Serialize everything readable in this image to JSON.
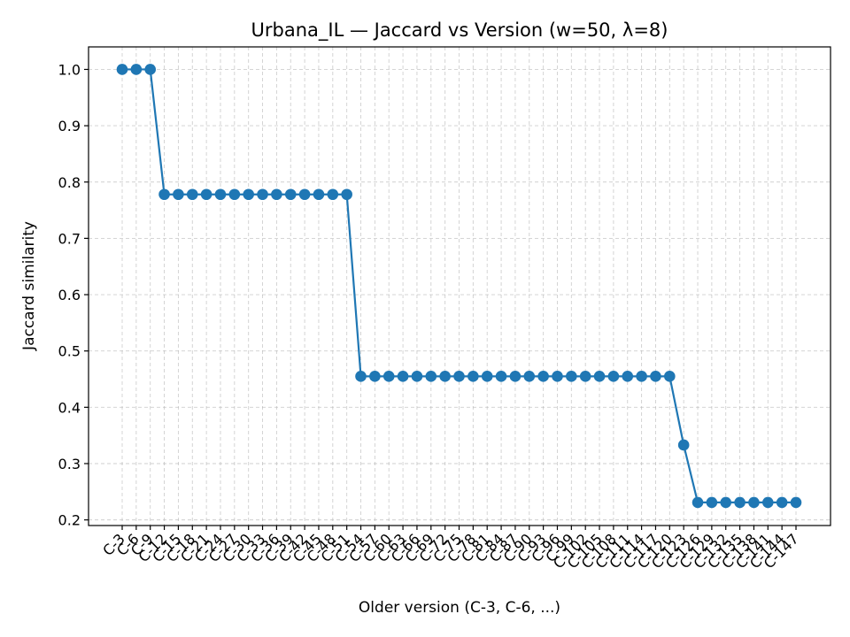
{
  "chart_data": {
    "type": "line",
    "title": "Urbana_IL — Jaccard vs Version (w=50, λ=8)",
    "xlabel": "Older version (C-3, C-6, ...)",
    "ylabel": "Jaccard similarity",
    "ylim": [
      0.19,
      1.04
    ],
    "yticks": [
      0.2,
      0.3,
      0.4,
      0.5,
      0.6,
      0.7,
      0.8,
      0.9,
      1.0
    ],
    "grid": true,
    "color": "#1f77b4",
    "categories": [
      "C-3",
      "C-6",
      "C-9",
      "C-12",
      "C-15",
      "C-18",
      "C-21",
      "C-24",
      "C-27",
      "C-30",
      "C-33",
      "C-36",
      "C-39",
      "C-42",
      "C-45",
      "C-48",
      "C-51",
      "C-54",
      "C-57",
      "C-60",
      "C-63",
      "C-66",
      "C-69",
      "C-72",
      "C-75",
      "C-78",
      "C-81",
      "C-84",
      "C-87",
      "C-90",
      "C-93",
      "C-96",
      "C-99",
      "C-102",
      "C-105",
      "C-108",
      "C-111",
      "C-114",
      "C-117",
      "C-120",
      "C-123",
      "C-126",
      "C-129",
      "C-132",
      "C-135",
      "C-138",
      "C-141",
      "C-144",
      "C-147"
    ],
    "values": [
      1.0,
      1.0,
      1.0,
      0.778,
      0.778,
      0.778,
      0.778,
      0.778,
      0.778,
      0.778,
      0.778,
      0.778,
      0.778,
      0.778,
      0.778,
      0.778,
      0.778,
      0.455,
      0.455,
      0.455,
      0.455,
      0.455,
      0.455,
      0.455,
      0.455,
      0.455,
      0.455,
      0.455,
      0.455,
      0.455,
      0.455,
      0.455,
      0.455,
      0.455,
      0.455,
      0.455,
      0.455,
      0.455,
      0.455,
      0.455,
      0.333,
      0.231,
      0.231,
      0.231,
      0.231,
      0.231,
      0.231,
      0.231,
      0.231
    ]
  }
}
